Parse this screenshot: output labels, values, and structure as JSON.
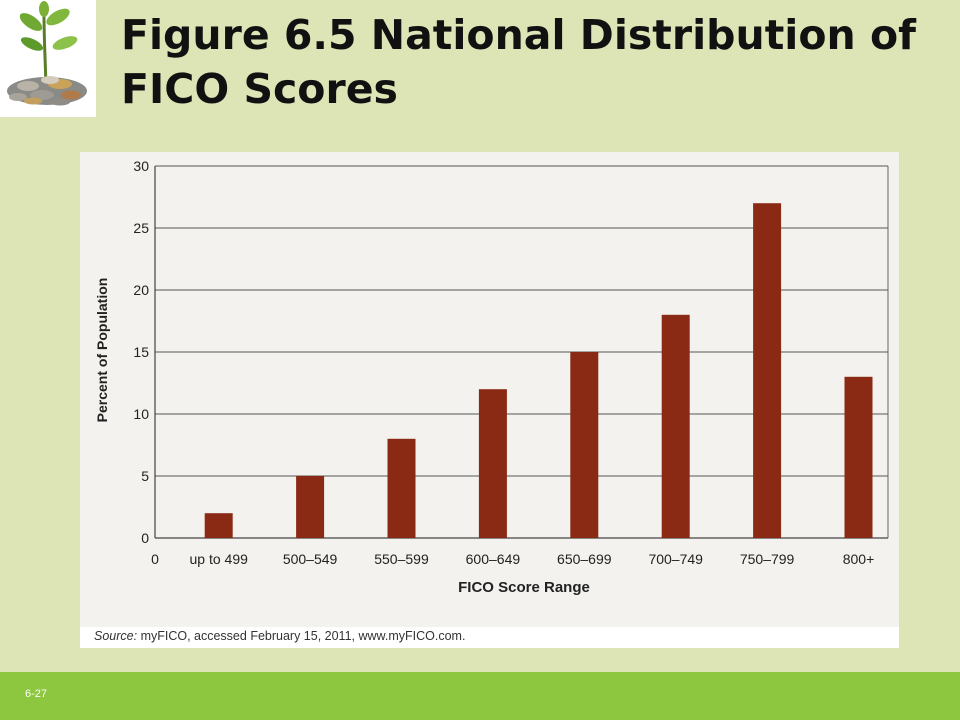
{
  "slide": {
    "title": "Figure 6.5  National Distribution of FICO Scores",
    "number": "6-27"
  },
  "logo": {
    "icon": "plant-sprouting-from-coins-icon"
  },
  "source": {
    "label": "Source:",
    "text": " myFICO, accessed February 15, 2011, www.myFICO.com."
  },
  "colors": {
    "background": "#dde5b6",
    "footer": "#8dc63f",
    "bar": "#8b2a14",
    "chart_panel": "#f3f2ee"
  },
  "chart_data": {
    "type": "bar",
    "title": "",
    "xlabel": "FICO Score Range",
    "ylabel": "Percent of Population",
    "categories": [
      "up to 499",
      "500–549",
      "550–599",
      "600–649",
      "650–699",
      "700–749",
      "750–799",
      "800+"
    ],
    "values": [
      2,
      5,
      8,
      12,
      15,
      18,
      27,
      13
    ],
    "ylim": [
      0,
      30
    ],
    "yticks": [
      0,
      5,
      10,
      15,
      20,
      25,
      30
    ],
    "x_origin_label": "0",
    "grid": true,
    "legend": "none"
  }
}
